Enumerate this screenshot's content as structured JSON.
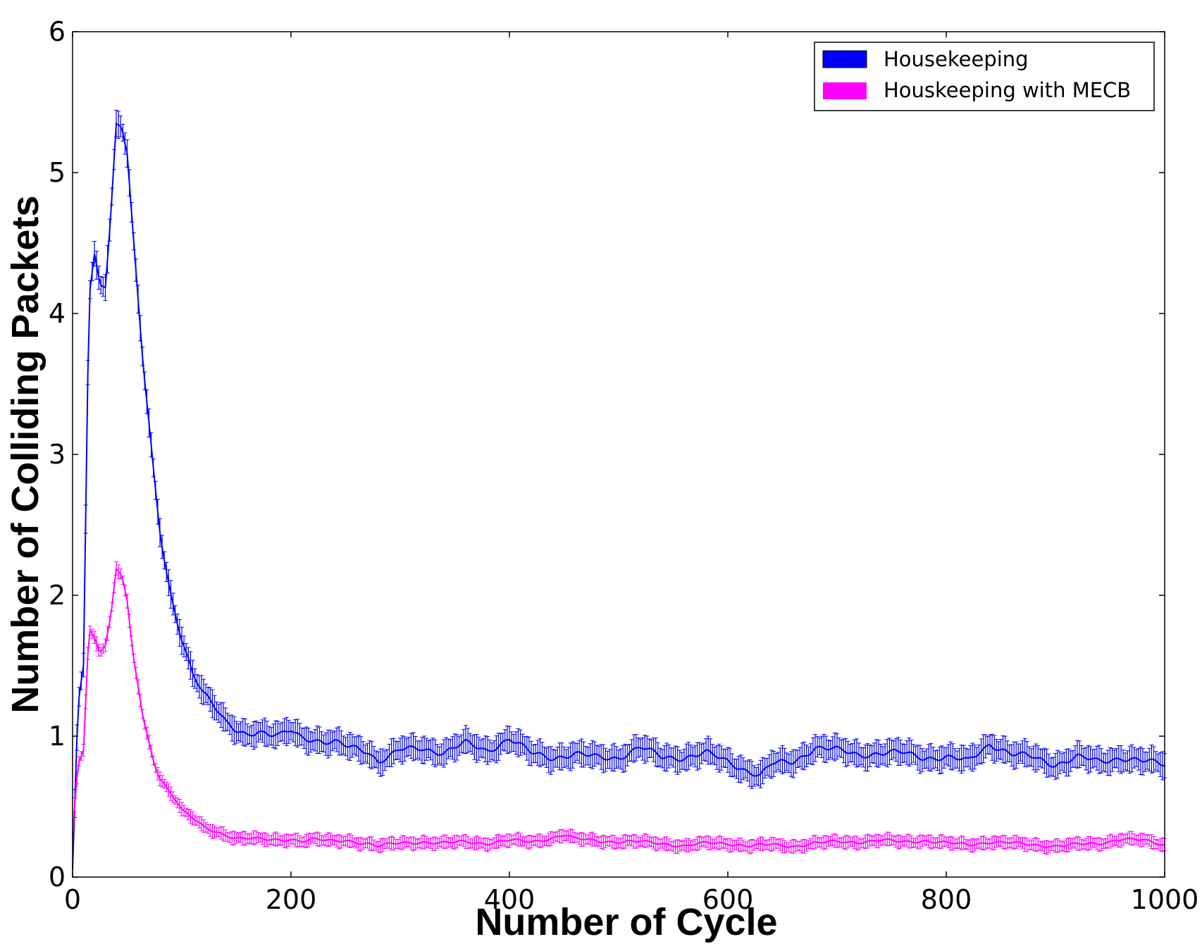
{
  "chart_data": {
    "type": "line",
    "xlabel": "Number of Cycle",
    "ylabel": "Number of Colliding Packets",
    "xlim": [
      0,
      1000
    ],
    "ylim": [
      0,
      6
    ],
    "xticks": [
      "0",
      "200",
      "400",
      "600",
      "800",
      "1000"
    ],
    "yticks": [
      "0",
      "1",
      "2",
      "3",
      "4",
      "5",
      "6"
    ],
    "grid": false,
    "legend_position": "top-right",
    "error_bars": true,
    "series": [
      {
        "name": "Housekeeping",
        "color": "#0000ff",
        "x": [
          0,
          5,
          10,
          15,
          20,
          25,
          30,
          35,
          40,
          45,
          50,
          55,
          60,
          65,
          70,
          75,
          80,
          85,
          90,
          95,
          100,
          110,
          120,
          130,
          140,
          150,
          160,
          170,
          180,
          190,
          200,
          210,
          220,
          230,
          240,
          250,
          260,
          270,
          280,
          290,
          300,
          320,
          340,
          360,
          380,
          400,
          420,
          440,
          460,
          480,
          500,
          520,
          540,
          560,
          580,
          600,
          620,
          630,
          640,
          660,
          680,
          700,
          720,
          740,
          760,
          780,
          800,
          820,
          840,
          860,
          880,
          900,
          920,
          940,
          960,
          980,
          1000
        ],
        "values": [
          0.05,
          1.2,
          1.5,
          4.1,
          4.4,
          4.2,
          4.2,
          4.7,
          5.35,
          5.35,
          5.15,
          4.6,
          4.1,
          3.6,
          3.2,
          2.8,
          2.45,
          2.2,
          2.0,
          1.85,
          1.7,
          1.45,
          1.3,
          1.2,
          1.1,
          1.05,
          1.02,
          1.03,
          1.0,
          1.0,
          1.05,
          1.0,
          0.98,
          0.95,
          0.95,
          0.93,
          0.92,
          0.9,
          0.82,
          0.85,
          0.9,
          0.92,
          0.88,
          0.95,
          0.9,
          0.98,
          0.88,
          0.85,
          0.87,
          0.85,
          0.85,
          0.92,
          0.85,
          0.85,
          0.88,
          0.82,
          0.75,
          0.72,
          0.8,
          0.82,
          0.92,
          0.9,
          0.87,
          0.88,
          0.88,
          0.85,
          0.85,
          0.82,
          0.95,
          0.87,
          0.85,
          0.8,
          0.85,
          0.82,
          0.85,
          0.82,
          0.8
        ],
        "errors": 0.08
      },
      {
        "name": "Houskeeping with MECB",
        "color": "#ff00ff",
        "x": [
          0,
          5,
          10,
          15,
          20,
          25,
          30,
          35,
          40,
          45,
          50,
          55,
          60,
          65,
          70,
          75,
          80,
          85,
          90,
          95,
          100,
          110,
          120,
          130,
          140,
          150,
          160,
          170,
          180,
          190,
          200,
          210,
          220,
          230,
          240,
          250,
          260,
          270,
          280,
          290,
          300,
          320,
          340,
          360,
          380,
          400,
          420,
          440,
          450,
          460,
          480,
          500,
          520,
          540,
          560,
          580,
          600,
          620,
          640,
          660,
          680,
          700,
          720,
          740,
          760,
          780,
          800,
          820,
          840,
          860,
          880,
          900,
          920,
          940,
          960,
          980,
          1000
        ],
        "values": [
          0.3,
          0.8,
          0.9,
          1.75,
          1.7,
          1.6,
          1.65,
          1.85,
          2.2,
          2.15,
          1.95,
          1.6,
          1.35,
          1.1,
          0.95,
          0.8,
          0.7,
          0.65,
          0.6,
          0.55,
          0.48,
          0.42,
          0.35,
          0.32,
          0.3,
          0.28,
          0.28,
          0.27,
          0.26,
          0.26,
          0.27,
          0.26,
          0.27,
          0.26,
          0.25,
          0.26,
          0.25,
          0.24,
          0.22,
          0.23,
          0.24,
          0.25,
          0.24,
          0.25,
          0.24,
          0.26,
          0.25,
          0.28,
          0.3,
          0.27,
          0.26,
          0.25,
          0.25,
          0.24,
          0.22,
          0.24,
          0.24,
          0.22,
          0.23,
          0.22,
          0.24,
          0.25,
          0.25,
          0.26,
          0.25,
          0.26,
          0.24,
          0.23,
          0.25,
          0.24,
          0.23,
          0.22,
          0.23,
          0.24,
          0.27,
          0.26,
          0.23
        ],
        "errors": 0.04
      }
    ]
  }
}
